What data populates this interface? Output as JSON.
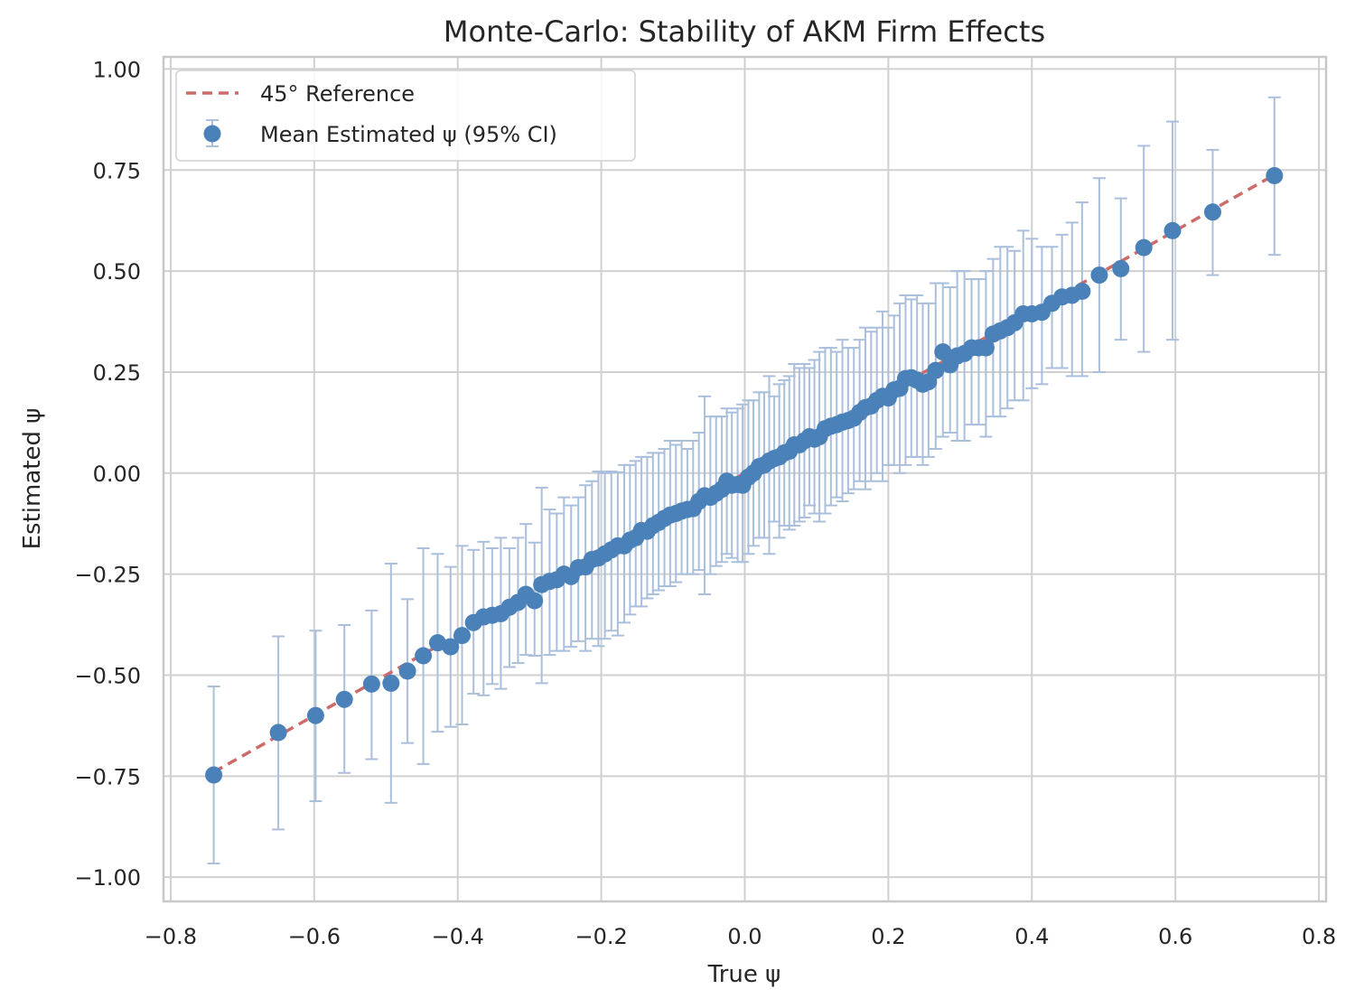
{
  "chart_data": {
    "type": "scatter",
    "title": "Monte-Carlo: Stability of AKM Firm Effects",
    "xlabel": "True ψ",
    "ylabel": "Estimated ψ",
    "xlim": [
      -0.81,
      0.81
    ],
    "ylim": [
      -1.06,
      1.03
    ],
    "x_ticks": [
      -0.8,
      -0.6,
      -0.4,
      -0.2,
      0.0,
      0.2,
      0.4,
      0.6,
      0.8
    ],
    "x_tick_labels": [
      "−0.8",
      "−0.6",
      "−0.4",
      "−0.2",
      "0.0",
      "0.2",
      "0.4",
      "0.6",
      "0.8"
    ],
    "y_ticks": [
      -1.0,
      -0.75,
      -0.5,
      -0.25,
      0.0,
      0.25,
      0.5,
      0.75,
      1.0
    ],
    "y_tick_labels": [
      "−1.00",
      "−0.75",
      "−0.50",
      "−0.25",
      "0.00",
      "0.25",
      "0.50",
      "0.75",
      "1.00"
    ],
    "grid": true,
    "legend_position": "top-left",
    "colors": {
      "reference": "#cd6a6a",
      "points": "#4a81b8",
      "errorbars": "#aabfdb",
      "grid": "#d0d0d0",
      "frame": "#c8c8c8"
    },
    "reference_line": {
      "name": "45° Reference",
      "x": [
        -0.74,
        0.74
      ],
      "y": [
        -0.74,
        0.74
      ]
    },
    "series": [
      {
        "name": "Mean Estimated ψ (95% CI)",
        "points": [
          [
            -0.74,
            -0.747,
            -0.966,
            -0.528
          ],
          [
            -0.65,
            -0.642,
            -0.882,
            -0.404
          ],
          [
            -0.598,
            -0.6,
            -0.812,
            -0.39
          ],
          [
            -0.558,
            -0.56,
            -0.742,
            -0.376
          ],
          [
            -0.52,
            -0.522,
            -0.708,
            -0.34
          ],
          [
            -0.493,
            -0.52,
            -0.816,
            -0.224
          ],
          [
            -0.47,
            -0.49,
            -0.668,
            -0.312
          ],
          [
            -0.448,
            -0.452,
            -0.72,
            -0.186
          ],
          [
            -0.428,
            -0.42,
            -0.64,
            -0.2
          ],
          [
            -0.41,
            -0.43,
            -0.628,
            -0.232
          ],
          [
            -0.394,
            -0.402,
            -0.622,
            -0.18
          ],
          [
            -0.378,
            -0.37,
            -0.546,
            -0.19
          ],
          [
            -0.364,
            -0.356,
            -0.55,
            -0.17
          ],
          [
            -0.352,
            -0.352,
            -0.522,
            -0.186
          ],
          [
            -0.34,
            -0.348,
            -0.534,
            -0.16
          ],
          [
            -0.328,
            -0.332,
            -0.48,
            -0.186
          ],
          [
            -0.316,
            -0.32,
            -0.47,
            -0.16
          ],
          [
            -0.305,
            -0.3,
            -0.45,
            -0.126
          ],
          [
            -0.293,
            -0.316,
            -0.452,
            -0.172
          ],
          [
            -0.283,
            -0.276,
            -0.52,
            -0.036
          ],
          [
            -0.272,
            -0.268,
            -0.45,
            -0.09
          ],
          [
            -0.262,
            -0.264,
            -0.44,
            -0.1
          ],
          [
            -0.252,
            -0.25,
            -0.44,
            -0.06
          ],
          [
            -0.242,
            -0.256,
            -0.43,
            -0.08
          ],
          [
            -0.232,
            -0.234,
            -0.416,
            -0.06
          ],
          [
            -0.222,
            -0.232,
            -0.44,
            -0.03
          ],
          [
            -0.213,
            -0.214,
            -0.41,
            -0.02
          ],
          [
            -0.204,
            -0.21,
            -0.428,
            0.004
          ],
          [
            -0.195,
            -0.2,
            -0.41,
            0.0
          ],
          [
            -0.186,
            -0.19,
            -0.39,
            0.004
          ],
          [
            -0.177,
            -0.18,
            -0.402,
            0.002
          ],
          [
            -0.168,
            -0.18,
            -0.37,
            0.02
          ],
          [
            -0.16,
            -0.166,
            -0.35,
            0.02
          ],
          [
            -0.152,
            -0.16,
            -0.33,
            0.03
          ],
          [
            -0.144,
            -0.142,
            -0.33,
            0.04
          ],
          [
            -0.136,
            -0.144,
            -0.31,
            0.04
          ],
          [
            -0.128,
            -0.13,
            -0.3,
            0.05
          ],
          [
            -0.12,
            -0.122,
            -0.29,
            0.05
          ],
          [
            -0.112,
            -0.112,
            -0.28,
            0.06
          ],
          [
            -0.104,
            -0.104,
            -0.28,
            0.08
          ],
          [
            -0.096,
            -0.1,
            -0.27,
            0.07
          ],
          [
            -0.088,
            -0.094,
            -0.25,
            0.08
          ],
          [
            -0.08,
            -0.09,
            -0.25,
            0.06
          ],
          [
            -0.072,
            -0.088,
            -0.25,
            0.08
          ],
          [
            -0.064,
            -0.07,
            -0.24,
            0.1
          ],
          [
            -0.056,
            -0.056,
            -0.3,
            0.19
          ],
          [
            -0.048,
            -0.06,
            -0.25,
            0.14
          ],
          [
            -0.04,
            -0.05,
            -0.23,
            0.14
          ],
          [
            -0.032,
            -0.04,
            -0.22,
            0.14
          ],
          [
            -0.025,
            -0.02,
            -0.2,
            0.16
          ],
          [
            -0.018,
            -0.03,
            -0.21,
            0.15
          ],
          [
            -0.01,
            -0.028,
            -0.22,
            0.16
          ],
          [
            -0.003,
            -0.03,
            -0.22,
            0.17
          ],
          [
            0.005,
            -0.01,
            -0.2,
            0.18
          ],
          [
            0.012,
            0.0,
            -0.18,
            0.18
          ],
          [
            0.02,
            0.016,
            -0.16,
            0.2
          ],
          [
            0.027,
            0.02,
            -0.16,
            0.2
          ],
          [
            0.034,
            0.03,
            -0.2,
            0.24
          ],
          [
            0.041,
            0.036,
            -0.12,
            0.19
          ],
          [
            0.048,
            0.04,
            -0.16,
            0.22
          ],
          [
            0.055,
            0.05,
            -0.13,
            0.23
          ],
          [
            0.062,
            0.054,
            -0.14,
            0.24
          ],
          [
            0.069,
            0.07,
            -0.13,
            0.27
          ],
          [
            0.076,
            0.07,
            -0.12,
            0.26
          ],
          [
            0.083,
            0.08,
            -0.11,
            0.27
          ],
          [
            0.09,
            0.09,
            -0.08,
            0.26
          ],
          [
            0.097,
            0.084,
            -0.1,
            0.28
          ],
          [
            0.104,
            0.09,
            -0.12,
            0.3
          ],
          [
            0.112,
            0.11,
            -0.1,
            0.31
          ],
          [
            0.12,
            0.116,
            -0.08,
            0.31
          ],
          [
            0.128,
            0.12,
            -0.06,
            0.3
          ],
          [
            0.136,
            0.126,
            -0.07,
            0.33
          ],
          [
            0.144,
            0.13,
            -0.05,
            0.31
          ],
          [
            0.152,
            0.136,
            -0.04,
            0.31
          ],
          [
            0.16,
            0.15,
            -0.02,
            0.33
          ],
          [
            0.168,
            0.162,
            -0.04,
            0.36
          ],
          [
            0.176,
            0.166,
            -0.02,
            0.35
          ],
          [
            0.184,
            0.18,
            0.0,
            0.36
          ],
          [
            0.192,
            0.19,
            -0.02,
            0.4
          ],
          [
            0.2,
            0.186,
            0.02,
            0.36
          ],
          [
            0.208,
            0.206,
            0.02,
            0.39
          ],
          [
            0.216,
            0.21,
            0.0,
            0.42
          ],
          [
            0.224,
            0.234,
            0.02,
            0.44
          ],
          [
            0.232,
            0.236,
            0.04,
            0.43
          ],
          [
            0.24,
            0.23,
            0.04,
            0.44
          ],
          [
            0.248,
            0.22,
            0.02,
            0.42
          ],
          [
            0.256,
            0.226,
            0.04,
            0.42
          ],
          [
            0.266,
            0.254,
            0.06,
            0.47
          ],
          [
            0.276,
            0.3,
            0.09,
            0.47
          ],
          [
            0.286,
            0.268,
            0.1,
            0.46
          ],
          [
            0.296,
            0.29,
            0.08,
            0.5
          ],
          [
            0.306,
            0.296,
            0.08,
            0.5
          ],
          [
            0.316,
            0.31,
            0.12,
            0.48
          ],
          [
            0.326,
            0.31,
            0.12,
            0.48
          ],
          [
            0.336,
            0.31,
            0.09,
            0.5
          ],
          [
            0.346,
            0.344,
            0.14,
            0.53
          ],
          [
            0.356,
            0.352,
            0.14,
            0.56
          ],
          [
            0.366,
            0.36,
            0.16,
            0.56
          ],
          [
            0.376,
            0.372,
            0.18,
            0.55
          ],
          [
            0.388,
            0.394,
            0.18,
            0.6
          ],
          [
            0.4,
            0.394,
            0.21,
            0.58
          ],
          [
            0.414,
            0.398,
            0.22,
            0.56
          ],
          [
            0.428,
            0.42,
            0.26,
            0.56
          ],
          [
            0.442,
            0.436,
            0.26,
            0.59
          ],
          [
            0.456,
            0.44,
            0.24,
            0.62
          ],
          [
            0.47,
            0.45,
            0.24,
            0.67
          ],
          [
            0.494,
            0.49,
            0.25,
            0.73
          ],
          [
            0.524,
            0.506,
            0.33,
            0.68
          ],
          [
            0.556,
            0.558,
            0.3,
            0.81
          ],
          [
            0.596,
            0.6,
            0.33,
            0.87
          ],
          [
            0.652,
            0.646,
            0.49,
            0.8
          ],
          [
            0.738,
            0.736,
            0.54,
            0.93
          ]
        ]
      }
    ]
  }
}
